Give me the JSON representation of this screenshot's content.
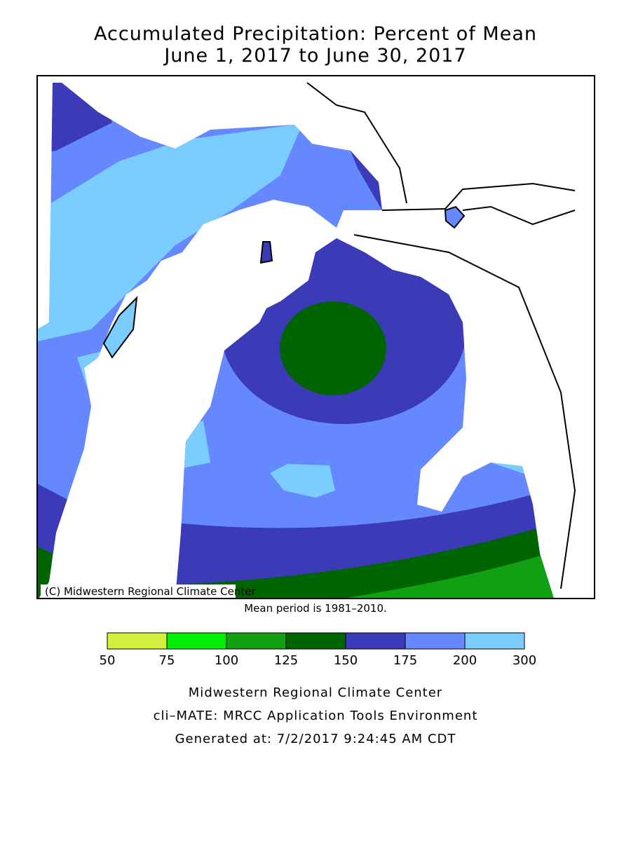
{
  "title": [
    "Accumulated Precipitation: Percent of Mean",
    "June 1, 2017 to June 30, 2017"
  ],
  "map": {
    "credit": "(C) Midwestern Regional Climate Center"
  },
  "note": "Mean period is 1981–2010.",
  "legend": {
    "ticks": [
      50,
      75,
      100,
      125,
      150,
      175,
      200,
      300
    ],
    "colors": [
      "#d4f03c",
      "#00ee00",
      "#11a011",
      "#006400",
      "#3b3bb8",
      "#6688ff",
      "#7ccdff"
    ]
  },
  "footer": [
    "Midwestern Regional Climate Center",
    "cli–MATE: MRCC Application Tools Environment",
    "Generated at: 7/2/2017 9:24:45 AM CDT"
  ]
}
